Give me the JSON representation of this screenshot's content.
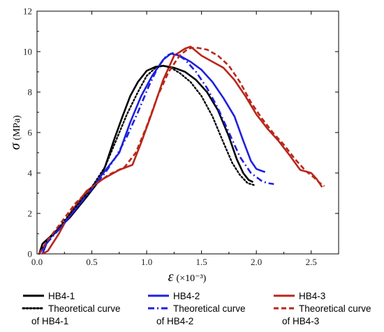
{
  "chart_data": {
    "type": "line",
    "x_axis": {
      "symbol": "ε",
      "unit": "(×10⁻³)",
      "ticks": [
        "0.0",
        "0.5",
        "1.0",
        "1.5",
        "2.0",
        "2.5"
      ],
      "range": [
        0,
        2.75
      ]
    },
    "y_axis": {
      "symbol": "σ",
      "unit": "(MPa)",
      "ticks": [
        "0",
        "2",
        "4",
        "6",
        "8",
        "10",
        "12"
      ],
      "range": [
        0,
        12
      ]
    },
    "grid": false,
    "legend_position": "bottom",
    "series": [
      {
        "name": "HB4-1",
        "color": "#000000",
        "style": "solid",
        "points": [
          [
            0.02,
            0.0
          ],
          [
            0.05,
            0.5
          ],
          [
            0.15,
            1.0
          ],
          [
            0.3,
            1.8
          ],
          [
            0.45,
            2.8
          ],
          [
            0.55,
            3.5
          ],
          [
            0.62,
            4.3
          ],
          [
            0.7,
            5.6
          ],
          [
            0.78,
            6.8
          ],
          [
            0.85,
            7.8
          ],
          [
            0.92,
            8.5
          ],
          [
            1.0,
            9.05
          ],
          [
            1.08,
            9.25
          ],
          [
            1.15,
            9.3
          ],
          [
            1.25,
            9.2
          ],
          [
            1.35,
            9.0
          ],
          [
            1.45,
            8.6
          ],
          [
            1.55,
            8.0
          ],
          [
            1.65,
            7.1
          ],
          [
            1.75,
            5.8
          ],
          [
            1.82,
            4.7
          ],
          [
            1.88,
            4.0
          ],
          [
            1.93,
            3.65
          ],
          [
            1.97,
            3.55
          ]
        ]
      },
      {
        "name": "HB4-2",
        "color": "#1f1fe0",
        "style": "solid",
        "points": [
          [
            0.05,
            0.0
          ],
          [
            0.1,
            0.7
          ],
          [
            0.2,
            1.2
          ],
          [
            0.35,
            2.2
          ],
          [
            0.5,
            3.3
          ],
          [
            0.62,
            4.1
          ],
          [
            0.75,
            5.0
          ],
          [
            0.85,
            6.5
          ],
          [
            0.95,
            7.8
          ],
          [
            1.05,
            8.8
          ],
          [
            1.15,
            9.6
          ],
          [
            1.22,
            9.9
          ],
          [
            1.3,
            9.8
          ],
          [
            1.4,
            9.5
          ],
          [
            1.5,
            9.1
          ],
          [
            1.6,
            8.5
          ],
          [
            1.7,
            7.7
          ],
          [
            1.8,
            6.8
          ],
          [
            1.88,
            5.6
          ],
          [
            1.95,
            4.6
          ],
          [
            2.0,
            4.2
          ],
          [
            2.05,
            4.1
          ],
          [
            2.08,
            4.05
          ]
        ]
      },
      {
        "name": "HB4-3",
        "color": "#b8271a",
        "style": "solid",
        "points": [
          [
            0.05,
            0.0
          ],
          [
            0.1,
            0.15
          ],
          [
            0.2,
            1.0
          ],
          [
            0.3,
            2.0
          ],
          [
            0.45,
            3.1
          ],
          [
            0.6,
            3.7
          ],
          [
            0.75,
            4.15
          ],
          [
            0.87,
            4.4
          ],
          [
            0.95,
            5.5
          ],
          [
            1.05,
            7.0
          ],
          [
            1.15,
            8.6
          ],
          [
            1.25,
            9.8
          ],
          [
            1.35,
            10.15
          ],
          [
            1.4,
            10.25
          ],
          [
            1.5,
            9.8
          ],
          [
            1.6,
            9.5
          ],
          [
            1.7,
            9.2
          ],
          [
            1.8,
            8.6
          ],
          [
            1.9,
            7.8
          ],
          [
            2.0,
            6.9
          ],
          [
            2.1,
            6.2
          ],
          [
            2.2,
            5.6
          ],
          [
            2.3,
            4.9
          ],
          [
            2.4,
            4.15
          ],
          [
            2.5,
            4.0
          ],
          [
            2.55,
            3.7
          ],
          [
            2.6,
            3.3
          ]
        ]
      },
      {
        "name": "Theoretical curve of HB4-1",
        "color": "#000000",
        "style": "dotted",
        "points": [
          [
            0.02,
            0.0
          ],
          [
            0.1,
            0.7
          ],
          [
            0.2,
            1.3
          ],
          [
            0.35,
            2.3
          ],
          [
            0.5,
            3.3
          ],
          [
            0.62,
            4.3
          ],
          [
            0.72,
            5.6
          ],
          [
            0.82,
            6.9
          ],
          [
            0.92,
            8.0
          ],
          [
            1.0,
            8.8
          ],
          [
            1.08,
            9.2
          ],
          [
            1.15,
            9.3
          ],
          [
            1.22,
            9.2
          ],
          [
            1.3,
            8.95
          ],
          [
            1.4,
            8.5
          ],
          [
            1.5,
            7.8
          ],
          [
            1.6,
            6.8
          ],
          [
            1.7,
            5.5
          ],
          [
            1.78,
            4.5
          ],
          [
            1.85,
            3.9
          ],
          [
            1.92,
            3.5
          ],
          [
            1.98,
            3.4
          ]
        ]
      },
      {
        "name": "Theoretical curve of HB4-2",
        "color": "#1f1fe0",
        "style": "dashdot",
        "points": [
          [
            0.02,
            0.0
          ],
          [
            0.1,
            0.6
          ],
          [
            0.2,
            1.2
          ],
          [
            0.35,
            2.2
          ],
          [
            0.5,
            3.2
          ],
          [
            0.62,
            4.0
          ],
          [
            0.72,
            4.8
          ],
          [
            0.82,
            5.8
          ],
          [
            0.92,
            7.0
          ],
          [
            1.02,
            8.3
          ],
          [
            1.1,
            9.2
          ],
          [
            1.18,
            9.8
          ],
          [
            1.25,
            9.95
          ],
          [
            1.35,
            9.6
          ],
          [
            1.45,
            9.0
          ],
          [
            1.55,
            8.2
          ],
          [
            1.65,
            7.2
          ],
          [
            1.75,
            6.0
          ],
          [
            1.85,
            4.8
          ],
          [
            1.95,
            4.0
          ],
          [
            2.05,
            3.6
          ],
          [
            2.1,
            3.5
          ],
          [
            2.16,
            3.45
          ]
        ]
      },
      {
        "name": "Theoretical curve of HB4-3",
        "color": "#b8271a",
        "style": "dashed",
        "points": [
          [
            0.02,
            0.0
          ],
          [
            0.1,
            0.7
          ],
          [
            0.2,
            1.4
          ],
          [
            0.35,
            2.5
          ],
          [
            0.5,
            3.3
          ],
          [
            0.65,
            3.9
          ],
          [
            0.8,
            4.3
          ],
          [
            0.9,
            5.0
          ],
          [
            1.0,
            6.3
          ],
          [
            1.1,
            7.8
          ],
          [
            1.2,
            9.0
          ],
          [
            1.3,
            9.8
          ],
          [
            1.38,
            10.15
          ],
          [
            1.45,
            10.2
          ],
          [
            1.55,
            10.1
          ],
          [
            1.65,
            9.8
          ],
          [
            1.75,
            9.3
          ],
          [
            1.85,
            8.5
          ],
          [
            1.95,
            7.5
          ],
          [
            2.05,
            6.7
          ],
          [
            2.15,
            6.0
          ],
          [
            2.25,
            5.4
          ],
          [
            2.35,
            4.7
          ],
          [
            2.45,
            4.1
          ],
          [
            2.52,
            3.8
          ],
          [
            2.58,
            3.5
          ],
          [
            2.62,
            3.35
          ]
        ]
      }
    ]
  }
}
